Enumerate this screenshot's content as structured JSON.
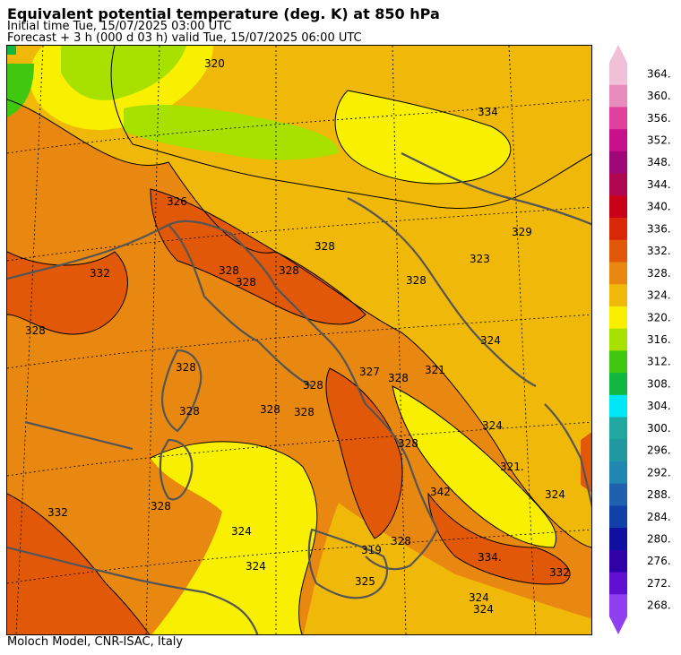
{
  "header": {
    "title": "Equivalent potential temperature (deg. K) at 850 hPa",
    "initial_time": "Initial time  Tue, 15/07/2025  03:00 UTC",
    "forecast": "Forecast  +   3 h  (000 d 03 h)  valid Tue, 15/07/2025 06:00 UTC"
  },
  "footer": {
    "credit": "Moloch Model, CNR-ISAC, Italy"
  },
  "colorbar": {
    "labels": [
      "364.",
      "360.",
      "356.",
      "352.",
      "348.",
      "344.",
      "340.",
      "336.",
      "332.",
      "328.",
      "324.",
      "320.",
      "316.",
      "312.",
      "308.",
      "304.",
      "300.",
      "296.",
      "292.",
      "288.",
      "284.",
      "280.",
      "276.",
      "272.",
      "268."
    ],
    "colors": [
      "#f0c0d8",
      "#e88cbc",
      "#e0409c",
      "#c8108c",
      "#a00878",
      "#b00850",
      "#c80018",
      "#d82808",
      "#e05808",
      "#e88810",
      "#f0b808",
      "#f8f000",
      "#a8e000",
      "#40c810",
      "#10b840",
      "#00e8f8",
      "#20a8a0",
      "#2098a0",
      "#2088b0",
      "#2060b0",
      "#1040a8",
      "#1010a0",
      "#3000a8",
      "#6010d0",
      "#9040f0"
    ]
  },
  "contour_labels": [
    "320",
    "326",
    "332",
    "328",
    "328",
    "328",
    "328",
    "328",
    "328",
    "334",
    "328",
    "324",
    "323",
    "329",
    "328",
    "327",
    "321",
    "321.",
    "324",
    "328",
    "328",
    "328",
    "328",
    "332",
    "328",
    "324",
    "324",
    "324",
    "319",
    "328",
    "342",
    "334.",
    "332",
    "324",
    "324",
    "328",
    "325"
  ]
}
